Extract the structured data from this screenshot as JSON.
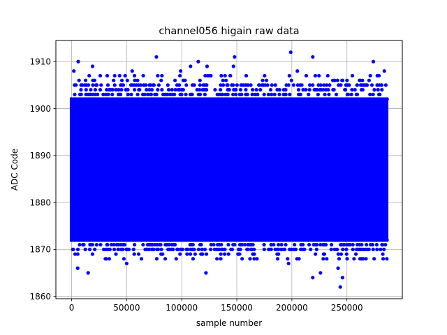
{
  "chart_data": {
    "type": "scatter",
    "title": "channel056 higain raw data",
    "xlabel": "sample number",
    "ylabel": "ADC Code",
    "xlim": [
      -14300,
      300300
    ],
    "ylim": [
      1859.5,
      1914.5
    ],
    "xticks": [
      0,
      50000,
      100000,
      150000,
      200000,
      250000
    ],
    "xtick_labels": [
      "0",
      "50000",
      "100000",
      "150000",
      "200000",
      "250000"
    ],
    "yticks": [
      1860,
      1870,
      1880,
      1890,
      1900,
      1910
    ],
    "ytick_labels": [
      "1860",
      "1870",
      "1880",
      "1890",
      "1900",
      "1910"
    ],
    "grid": true,
    "marker_color": "#0000ff",
    "n_samples": 286000,
    "dense_band": {
      "x": [
        0,
        286000
      ],
      "y": [
        1872,
        1902
      ]
    },
    "sparse_bands": [
      {
        "y": [
          1870,
          1872
        ],
        "density": 0.45
      },
      {
        "y": [
          1902,
          1905
        ],
        "density": 0.35
      },
      {
        "y": [
          1868,
          1869
        ],
        "density": 0.12
      },
      {
        "y": [
          1906,
          1907
        ],
        "density": 0.1
      }
    ],
    "outliers": [
      {
        "x": 2000,
        "y": 1908
      },
      {
        "x": 6000,
        "y": 1910
      },
      {
        "x": 5500,
        "y": 1866
      },
      {
        "x": 15000,
        "y": 1865
      },
      {
        "x": 19000,
        "y": 1909
      },
      {
        "x": 55000,
        "y": 1908
      },
      {
        "x": 77000,
        "y": 1911
      },
      {
        "x": 99000,
        "y": 1908
      },
      {
        "x": 108000,
        "y": 1909
      },
      {
        "x": 115000,
        "y": 1910
      },
      {
        "x": 122000,
        "y": 1865
      },
      {
        "x": 123000,
        "y": 1909
      },
      {
        "x": 147000,
        "y": 1909
      },
      {
        "x": 148000,
        "y": 1911
      },
      {
        "x": 199000,
        "y": 1912
      },
      {
        "x": 205000,
        "y": 1908
      },
      {
        "x": 219000,
        "y": 1911
      },
      {
        "x": 219000,
        "y": 1864
      },
      {
        "x": 226000,
        "y": 1865
      },
      {
        "x": 244000,
        "y": 1862
      },
      {
        "x": 246000,
        "y": 1864
      },
      {
        "x": 242000,
        "y": 1866
      },
      {
        "x": 274000,
        "y": 1910
      },
      {
        "x": 284000,
        "y": 1908
      },
      {
        "x": 162000,
        "y": 1868
      },
      {
        "x": 197000,
        "y": 1867
      },
      {
        "x": 85000,
        "y": 1868
      },
      {
        "x": 50000,
        "y": 1867
      }
    ]
  }
}
